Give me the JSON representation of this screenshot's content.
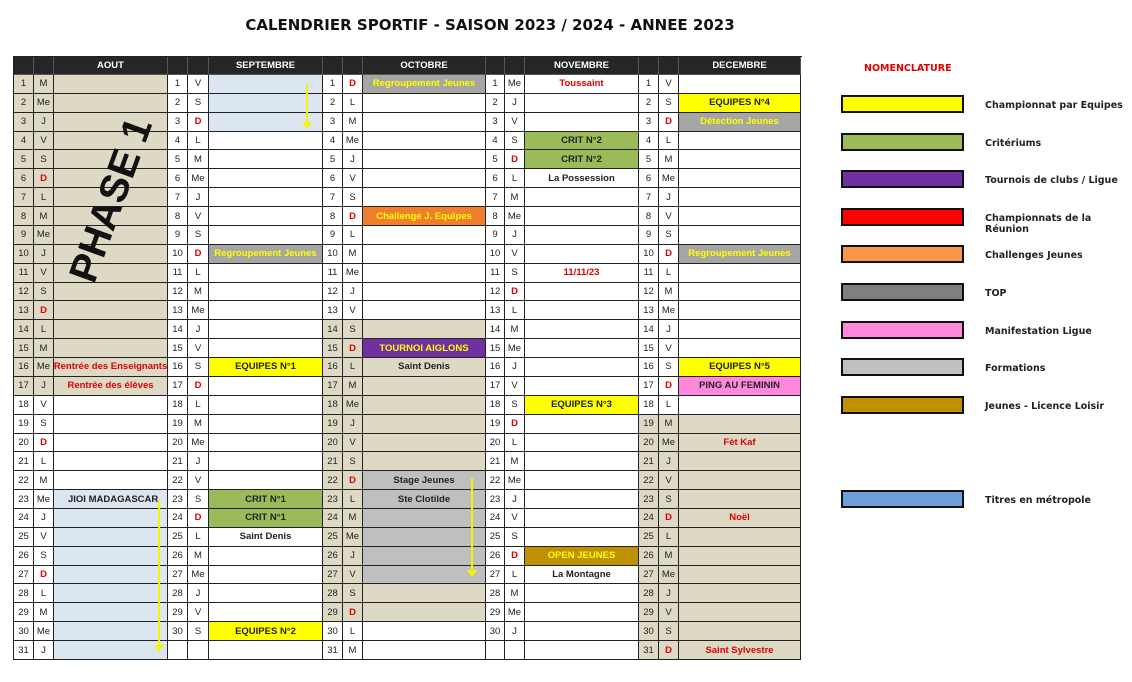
{
  "title": "CALENDRIER SPORTIF - SAISON 2023 / 2024 - ANNEE 2023",
  "watermark": "PHASE 1",
  "months": [
    {
      "name": "AOUT",
      "days": [
        "M",
        "Me",
        "J",
        "V",
        "S",
        "D",
        "L",
        "M",
        "Me",
        "J",
        "V",
        "S",
        "D",
        "L",
        "M",
        "Me",
        "J",
        "V",
        "S",
        "D",
        "L",
        "M",
        "Me",
        "J",
        "V",
        "S",
        "D",
        "L",
        "M",
        "Me",
        "J"
      ],
      "shaded": [
        {
          "from": 1,
          "to": 17,
          "bg": "#ddd9c4",
          "full": true
        },
        {
          "from": 23,
          "to": 31,
          "bg": "#dce6f1",
          "full": false
        }
      ],
      "events": [
        {
          "day": 16,
          "text": "Rentrée des Enseignants",
          "bg": "",
          "fg": "#e00000"
        },
        {
          "day": 17,
          "text": "Rentrée des élèves",
          "bg": "",
          "fg": "#e00000"
        },
        {
          "day": 23,
          "text": "JIOI MADAGASCAR",
          "bg": "",
          "fg": "#222222"
        }
      ]
    },
    {
      "name": "SEPTEMBRE",
      "days": [
        "V",
        "S",
        "D",
        "L",
        "M",
        "Me",
        "J",
        "V",
        "S",
        "D",
        "L",
        "M",
        "Me",
        "J",
        "V",
        "S",
        "D",
        "L",
        "M",
        "Me",
        "J",
        "V",
        "S",
        "D",
        "L",
        "M",
        "Me",
        "J",
        "V",
        "S"
      ],
      "shaded": [
        {
          "from": 1,
          "to": 3,
          "bg": "#dce6f1",
          "full": false
        }
      ],
      "events": [
        {
          "day": 10,
          "text": "Regroupement Jeunes",
          "bg": "#a6a6a6",
          "fg": "#ffff00"
        },
        {
          "day": 16,
          "text": "EQUIPES N°1",
          "bg": "#ffff00",
          "fg": "#222222"
        },
        {
          "day": 23,
          "text": "CRIT N°1",
          "bg": "#9bbb59",
          "fg": "#222222"
        },
        {
          "day": 24,
          "text": "CRIT N°1",
          "bg": "#9bbb59",
          "fg": "#222222"
        },
        {
          "day": 25,
          "text": "Saint Denis",
          "bg": "",
          "fg": "#222222"
        },
        {
          "day": 30,
          "text": "EQUIPES N°2",
          "bg": "#ffff00",
          "fg": "#222222"
        }
      ]
    },
    {
      "name": "OCTOBRE",
      "days": [
        "D",
        "L",
        "M",
        "Me",
        "J",
        "V",
        "S",
        "D",
        "L",
        "M",
        "Me",
        "J",
        "V",
        "S",
        "D",
        "L",
        "M",
        "Me",
        "J",
        "V",
        "S",
        "D",
        "L",
        "M",
        "Me",
        "J",
        "V",
        "S",
        "D",
        "L",
        "M"
      ],
      "shaded": [
        {
          "from": 14,
          "to": 29,
          "bg": "#ddd9c4",
          "full": true
        },
        {
          "from": 22,
          "to": 27,
          "bg": "#bfbfbf",
          "full": false
        }
      ],
      "events": [
        {
          "day": 1,
          "text": "Regroupement Jeunes",
          "bg": "#a6a6a6",
          "fg": "#ffff00"
        },
        {
          "day": 8,
          "text": "Challenge J. Equipes",
          "bg": "#f07f2d",
          "fg": "#ffff00"
        },
        {
          "day": 15,
          "text": "TOURNOI AIGLONS",
          "bg": "#7030a0",
          "fg": "#ffff00"
        },
        {
          "day": 16,
          "text": "Saint Denis",
          "bg": "",
          "fg": "#222222"
        },
        {
          "day": 22,
          "text": "Stage Jeunes",
          "bg": "",
          "fg": "#222222"
        },
        {
          "day": 23,
          "text": "Ste Clotilde",
          "bg": "",
          "fg": "#222222"
        }
      ]
    },
    {
      "name": "NOVEMBRE",
      "days": [
        "Me",
        "J",
        "V",
        "S",
        "D",
        "L",
        "M",
        "Me",
        "J",
        "V",
        "S",
        "D",
        "L",
        "M",
        "Me",
        "J",
        "V",
        "S",
        "D",
        "L",
        "M",
        "Me",
        "J",
        "V",
        "S",
        "D",
        "L",
        "M",
        "Me",
        "J"
      ],
      "shaded": [],
      "events": [
        {
          "day": 1,
          "text": "Toussaint",
          "bg": "",
          "fg": "#e00000"
        },
        {
          "day": 4,
          "text": "CRIT N°2",
          "bg": "#9bbb59",
          "fg": "#222222"
        },
        {
          "day": 5,
          "text": "CRIT N°2",
          "bg": "#9bbb59",
          "fg": "#222222"
        },
        {
          "day": 6,
          "text": "La Possession",
          "bg": "",
          "fg": "#222222"
        },
        {
          "day": 11,
          "text": "11/11/23",
          "bg": "",
          "fg": "#e00000"
        },
        {
          "day": 18,
          "text": "EQUIPES N°3",
          "bg": "#ffff00",
          "fg": "#222222"
        },
        {
          "day": 26,
          "text": "OPEN JEUNES",
          "bg": "#bf9000",
          "fg": "#ffff00"
        },
        {
          "day": 27,
          "text": "La Montagne",
          "bg": "",
          "fg": "#222222"
        }
      ]
    },
    {
      "name": "DECEMBRE",
      "days": [
        "V",
        "S",
        "D",
        "L",
        "M",
        "Me",
        "J",
        "V",
        "S",
        "D",
        "L",
        "M",
        "Me",
        "J",
        "V",
        "S",
        "D",
        "L",
        "M",
        "Me",
        "J",
        "V",
        "S",
        "D",
        "L",
        "M",
        "Me",
        "J",
        "V",
        "S",
        "D"
      ],
      "shaded": [
        {
          "from": 19,
          "to": 31,
          "bg": "#ddd9c4",
          "full": true
        }
      ],
      "events": [
        {
          "day": 2,
          "text": "EQUIPES N°4",
          "bg": "#ffff00",
          "fg": "#222222"
        },
        {
          "day": 3,
          "text": "Détection Jeunes",
          "bg": "#a6a6a6",
          "fg": "#ffff00"
        },
        {
          "day": 10,
          "text": "Regroupement Jeunes",
          "bg": "#a6a6a6",
          "fg": "#ffff00"
        },
        {
          "day": 16,
          "text": "EQUIPES N°5",
          "bg": "#ffff00",
          "fg": "#222222"
        },
        {
          "day": 17,
          "text": "PING AU FEMININ",
          "bg": "#ff88dd",
          "fg": "#222222"
        },
        {
          "day": 20,
          "text": "Fèt Kaf",
          "bg": "",
          "fg": "#e00000"
        },
        {
          "day": 24,
          "text": "Noël",
          "bg": "",
          "fg": "#e00000"
        },
        {
          "day": 31,
          "text": "Saint Sylvestre",
          "bg": "",
          "fg": "#e00000"
        }
      ]
    }
  ],
  "legend": {
    "title": "NOMENCLATURE",
    "items": [
      {
        "label": "Championnat par Equipes",
        "color": "#ffff00"
      },
      {
        "label": "Critériums",
        "color": "#9bbb59"
      },
      {
        "label": "Tournois de clubs / Ligue",
        "color": "#7030a0"
      },
      {
        "label": "Championnats de la Réunion",
        "color": "#ff0000"
      },
      {
        "label": "Challenges Jeunes",
        "color": "#f79646"
      },
      {
        "label": "TOP",
        "color": "#808080"
      },
      {
        "label": "Manifestation Ligue",
        "color": "#ff88dd"
      },
      {
        "label": "Formations",
        "color": "#c0c0c0"
      },
      {
        "label": "Jeunes - Licence Loisir",
        "color": "#bf9000"
      },
      {
        "label": "Titres en métropole",
        "color": "#6f9fd8"
      }
    ]
  }
}
